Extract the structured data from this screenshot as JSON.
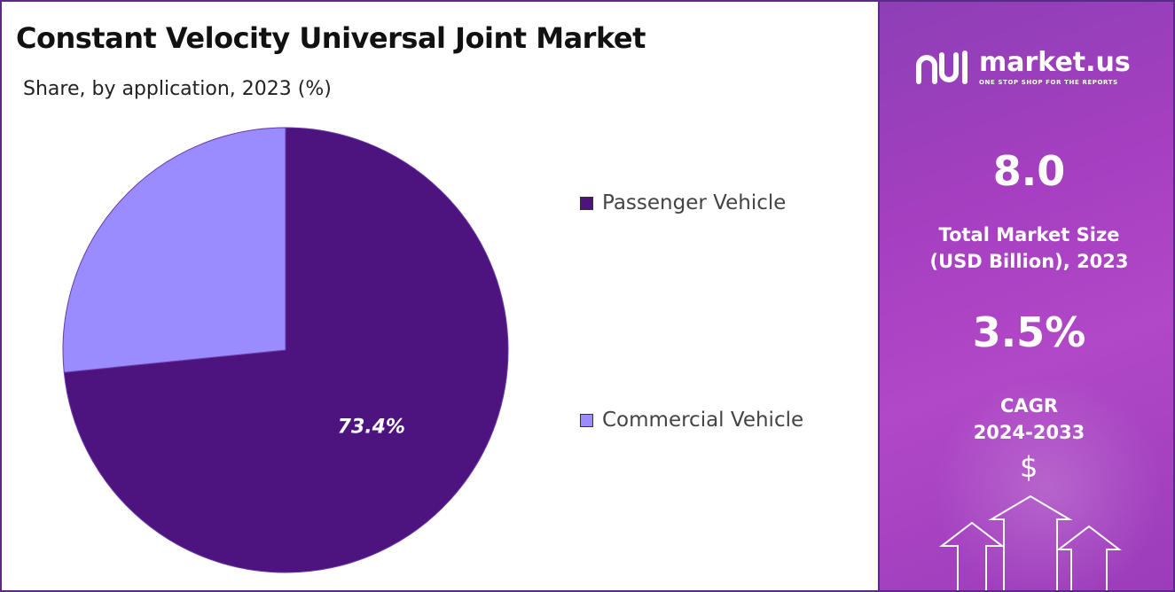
{
  "chart_data": {
    "type": "pie",
    "title": "Constant Velocity Universal Joint Market",
    "subtitle": "Share, by application, 2023 (%)",
    "categories": [
      "Passenger Vehicle",
      "Commercial Vehicle"
    ],
    "values": [
      73.4,
      26.6
    ],
    "colors": [
      "#4d1480",
      "#9a8cff"
    ],
    "data_labels": [
      "73.4%",
      ""
    ],
    "legend_position": "right"
  },
  "sidebar": {
    "brand": "market.us",
    "tagline": "ONE STOP SHOP FOR THE REPORTS",
    "market_size_value": "8.0",
    "market_size_label_1": "Total Market Size",
    "market_size_label_2": "(USD Billion), 2023",
    "cagr_value": "3.5%",
    "cagr_label_1": "CAGR",
    "cagr_label_2": "2024-2033",
    "dollar_symbol": "$",
    "icons": [
      "market-us-logo-icon",
      "dollar-icon",
      "up-arrow-icon"
    ]
  }
}
